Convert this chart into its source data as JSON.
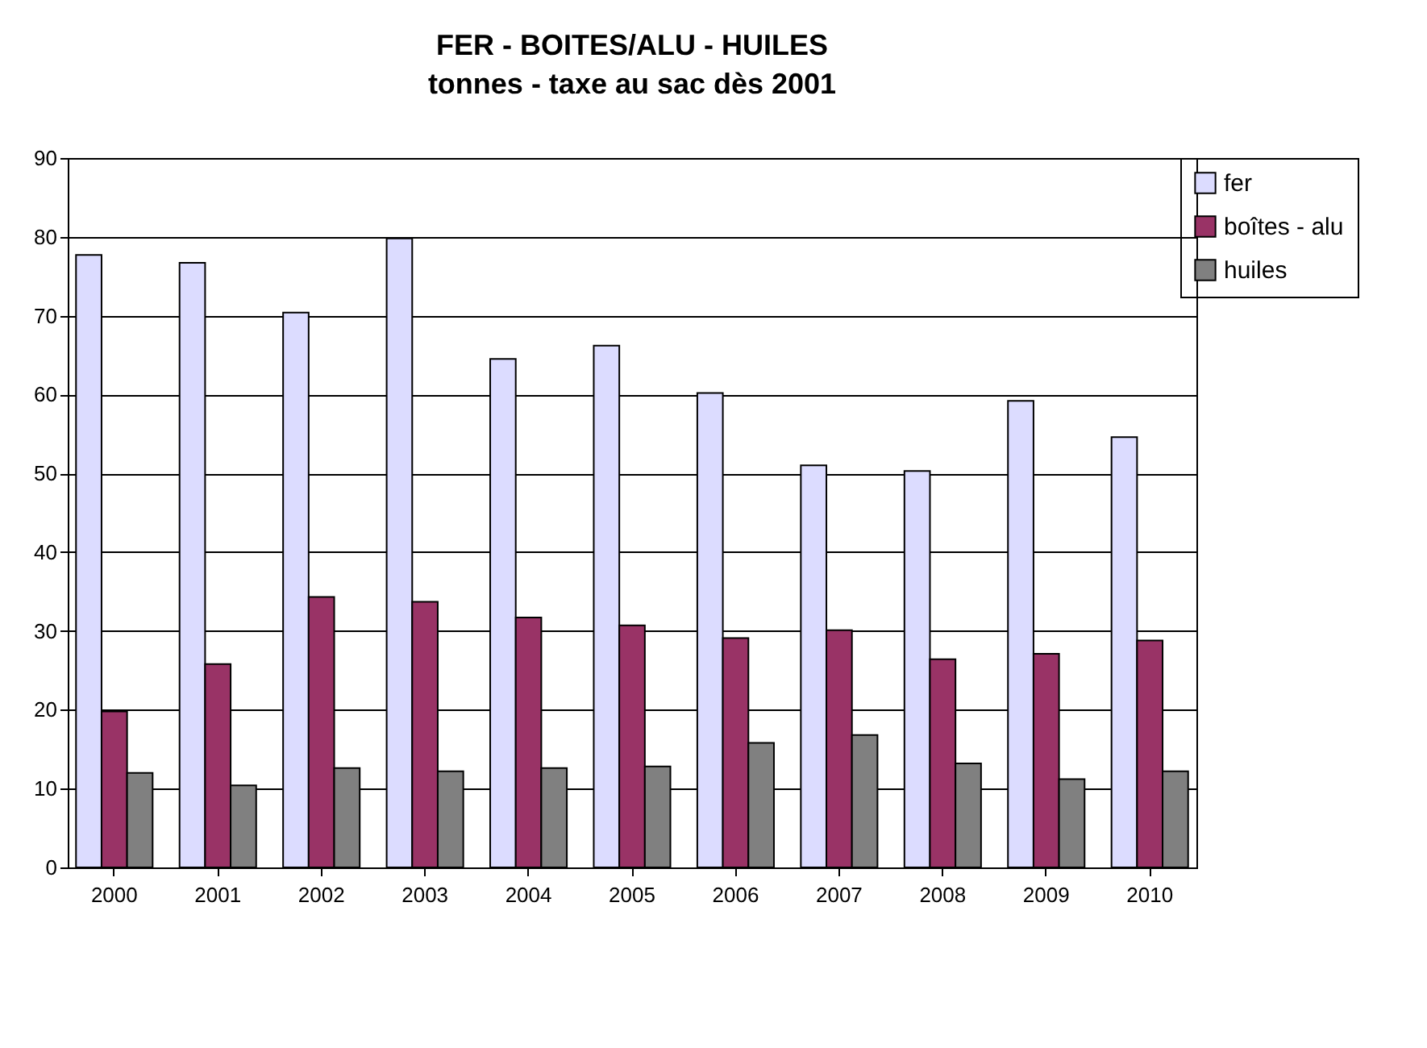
{
  "chart_data": {
    "type": "bar",
    "title": "FER - BOITES/ALU - HUILES",
    "subtitle": "tonnes - taxe au sac dès 2001",
    "categories": [
      "2000",
      "2001",
      "2002",
      "2003",
      "2004",
      "2005",
      "2006",
      "2007",
      "2008",
      "2009",
      "2010"
    ],
    "series": [
      {
        "name": "fer",
        "color": "#dcdcff",
        "values": [
          77.7,
          76.7,
          70.4,
          79.8,
          64.5,
          66.2,
          60.2,
          51,
          50.3,
          59.2,
          54.6
        ]
      },
      {
        "name": "boîtes - alu",
        "color": "#993366",
        "values": [
          19.8,
          25.8,
          34.3,
          33.7,
          31.7,
          30.7,
          29.1,
          30.1,
          26.4,
          27.1,
          28.8
        ]
      },
      {
        "name": "huiles",
        "color": "#808080",
        "values": [
          12,
          10.4,
          12.6,
          12.2,
          12.6,
          12.8,
          15.8,
          16.8,
          13.2,
          11.2,
          12.2
        ]
      }
    ],
    "ylim": [
      0,
      90
    ],
    "yticks": [
      0,
      10,
      20,
      30,
      40,
      50,
      60,
      70,
      80,
      90
    ],
    "grid": "y",
    "legend": "right"
  }
}
